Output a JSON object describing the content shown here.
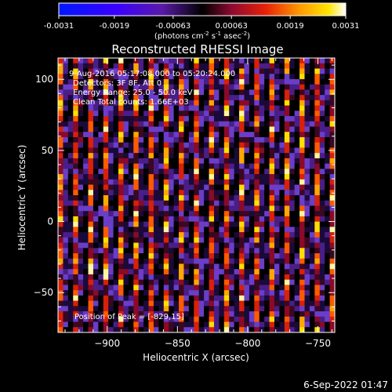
{
  "colorbar": {
    "ticks": [
      {
        "value": -0.0031,
        "label": "-0.0031"
      },
      {
        "value": -0.0019,
        "label": "-0.0019"
      },
      {
        "value": -0.00063,
        "label": "-0.00063"
      },
      {
        "value": 0.00063,
        "label": "0.00063"
      },
      {
        "value": 0.0019,
        "label": "0.0019"
      },
      {
        "value": 0.0031,
        "label": "0.0031"
      }
    ],
    "range": [
      -0.0031,
      0.0031
    ],
    "unit_prefix": "(photons cm",
    "unit_exp1": "-2",
    "unit_mid": " s",
    "unit_exp2": "-1",
    "unit_mid2": " asec",
    "unit_exp3": "-2",
    "unit_suffix": ")"
  },
  "chart_data": {
    "type": "heatmap",
    "title": "Reconstructed RHESSI Image",
    "xlabel": "Heliocentric X (arcsec)",
    "ylabel": "Heliocentric Y (arcsec)",
    "xlim": [
      -935,
      -738
    ],
    "ylim": [
      -78,
      115
    ],
    "xticks": [
      -900,
      -850,
      -800,
      -750
    ],
    "yticks": [
      -50,
      0,
      50,
      100
    ],
    "info_lines": [
      " 9-Aug-2016 05:17:08.000 to 05:20:24.000",
      "Detectors: 3F 8F, Att 0",
      "Energy Range: 25.0 - 50.0 keV",
      "Clean     Total counts: 1.66E+03"
    ],
    "peak_label": "Position of Peak = [-829,15]",
    "peak": [
      -829,
      15
    ],
    "grid_cols": 55,
    "grid_rows": 52
  },
  "footer": {
    "timestamp": "6-Sep-2022 01:47"
  }
}
